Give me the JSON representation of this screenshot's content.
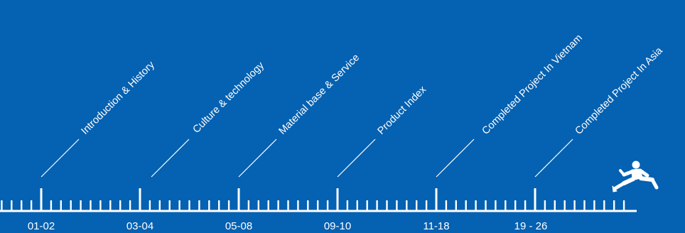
{
  "timeline": {
    "sections": [
      {
        "title": "Introduction & History",
        "pages": "01-02"
      },
      {
        "title": "Culture & technology",
        "pages": "03-04"
      },
      {
        "title": "Material base & Service",
        "pages": "05-08"
      },
      {
        "title": "Product Index",
        "pages": "09-10"
      },
      {
        "title": "Completed Project In Vietnam",
        "pages": "11-18"
      },
      {
        "title": "Completed Project In Asia",
        "pages": "19 - 26"
      }
    ],
    "runner_icon": "runner-jumping-icon",
    "colors": {
      "background": "#0561b1",
      "foreground": "#ffffff"
    }
  }
}
